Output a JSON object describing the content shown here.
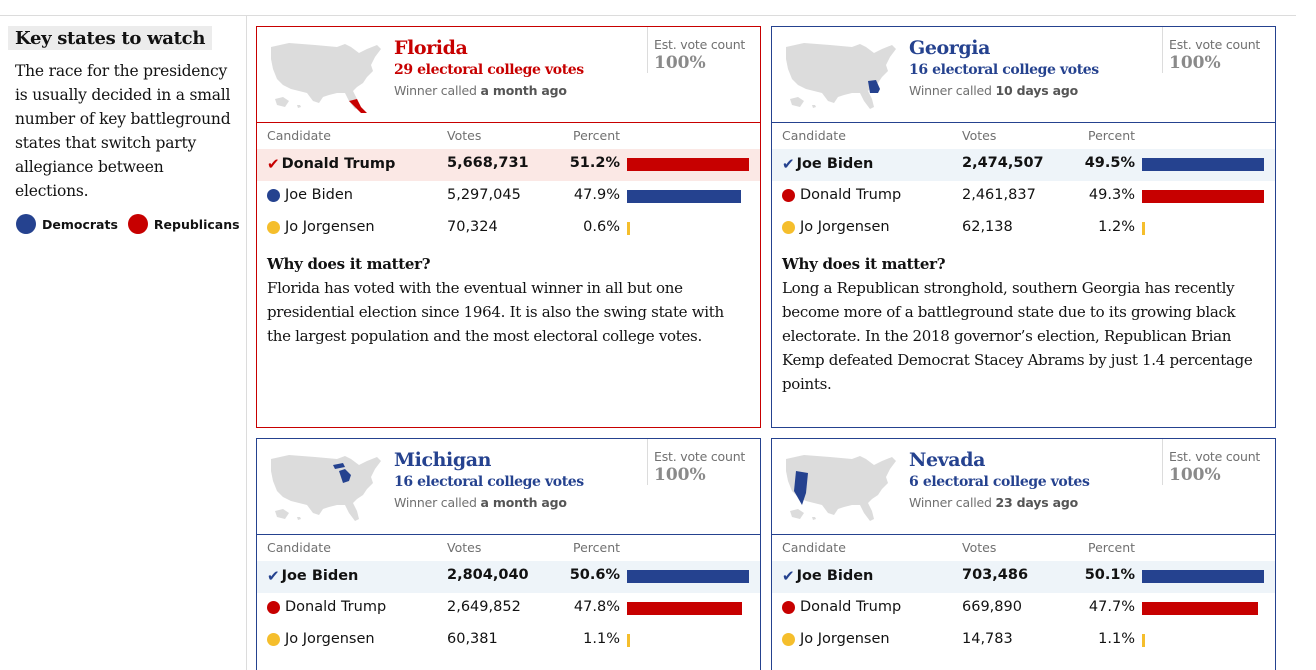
{
  "colors": {
    "democrat": "#25428f",
    "republican": "#c70000",
    "independent": "#f5be2c",
    "map_grey": "#dcdcdc"
  },
  "sidebar": {
    "title": "Key states to watch",
    "text": "The race for the presidency is usually decided in a small number of key battleground states that switch party allegiance between elections.",
    "legend": [
      {
        "label": "Democrats",
        "color": "#25428f"
      },
      {
        "label": "Republicans",
        "color": "#c70000"
      }
    ]
  },
  "table_headers": {
    "candidate": "Candidate",
    "votes": "Votes",
    "percent": "Percent"
  },
  "cards": [
    {
      "state": "Florida",
      "ec_votes": "29 electoral college votes",
      "winner_prefix": "Winner called",
      "winner_when": "a month ago",
      "party_color": "#c70000",
      "est_label": "Est. vote count",
      "est_value": "100%",
      "map_icon": "us-map-florida-icon",
      "candidates": [
        {
          "name": "Donald Trump",
          "votes": "5,668,731",
          "pct": "51.2%",
          "share": 51.2,
          "color": "#c70000",
          "winner": true
        },
        {
          "name": "Joe Biden",
          "votes": "5,297,045",
          "pct": "47.9%",
          "share": 47.9,
          "color": "#25428f",
          "winner": false
        },
        {
          "name": "Jo Jorgensen",
          "votes": "70,324",
          "pct": "0.6%",
          "share": 0.6,
          "color": "#f5be2c",
          "winner": false
        }
      ],
      "why_title": "Why does it matter?",
      "why_text": "Florida has voted with the eventual winner in all but one presidential election since 1964. It is also the swing state with the largest population and the most electoral college votes."
    },
    {
      "state": "Georgia",
      "ec_votes": "16 electoral college votes",
      "winner_prefix": "Winner called",
      "winner_when": "10 days ago",
      "party_color": "#25428f",
      "est_label": "Est. vote count",
      "est_value": "100%",
      "map_icon": "us-map-georgia-icon",
      "candidates": [
        {
          "name": "Joe Biden",
          "votes": "2,474,507",
          "pct": "49.5%",
          "share": 49.5,
          "color": "#25428f",
          "winner": true
        },
        {
          "name": "Donald Trump",
          "votes": "2,461,837",
          "pct": "49.3%",
          "share": 49.3,
          "color": "#c70000",
          "winner": false
        },
        {
          "name": "Jo Jorgensen",
          "votes": "62,138",
          "pct": "1.2%",
          "share": 1.2,
          "color": "#f5be2c",
          "winner": false
        }
      ],
      "why_title": "Why does it matter?",
      "why_text": "Long a Republican stronghold, southern Georgia has recently become more of a battleground state due to its growing black electorate. In the 2018 governor’s election, Republican Brian Kemp defeated Democrat Stacey Abrams by just 1.4 percentage points."
    },
    {
      "state": "Michigan",
      "ec_votes": "16 electoral college votes",
      "winner_prefix": "Winner called",
      "winner_when": "a month ago",
      "party_color": "#25428f",
      "est_label": "Est. vote count",
      "est_value": "100%",
      "map_icon": "us-map-michigan-icon",
      "candidates": [
        {
          "name": "Joe Biden",
          "votes": "2,804,040",
          "pct": "50.6%",
          "share": 50.6,
          "color": "#25428f",
          "winner": true
        },
        {
          "name": "Donald Trump",
          "votes": "2,649,852",
          "pct": "47.8%",
          "share": 47.8,
          "color": "#c70000",
          "winner": false
        },
        {
          "name": "Jo Jorgensen",
          "votes": "60,381",
          "pct": "1.1%",
          "share": 1.1,
          "color": "#f5be2c",
          "winner": false
        }
      ],
      "why_title": "",
      "why_text": ""
    },
    {
      "state": "Nevada",
      "ec_votes": "6 electoral college votes",
      "winner_prefix": "Winner called",
      "winner_when": "23 days ago",
      "party_color": "#25428f",
      "est_label": "Est. vote count",
      "est_value": "100%",
      "map_icon": "us-map-nevada-icon",
      "candidates": [
        {
          "name": "Joe Biden",
          "votes": "703,486",
          "pct": "50.1%",
          "share": 50.1,
          "color": "#25428f",
          "winner": true
        },
        {
          "name": "Donald Trump",
          "votes": "669,890",
          "pct": "47.7%",
          "share": 47.7,
          "color": "#c70000",
          "winner": false
        },
        {
          "name": "Jo Jorgensen",
          "votes": "14,783",
          "pct": "1.1%",
          "share": 1.1,
          "color": "#f5be2c",
          "winner": false
        }
      ],
      "why_title": "",
      "why_text": ""
    }
  ]
}
